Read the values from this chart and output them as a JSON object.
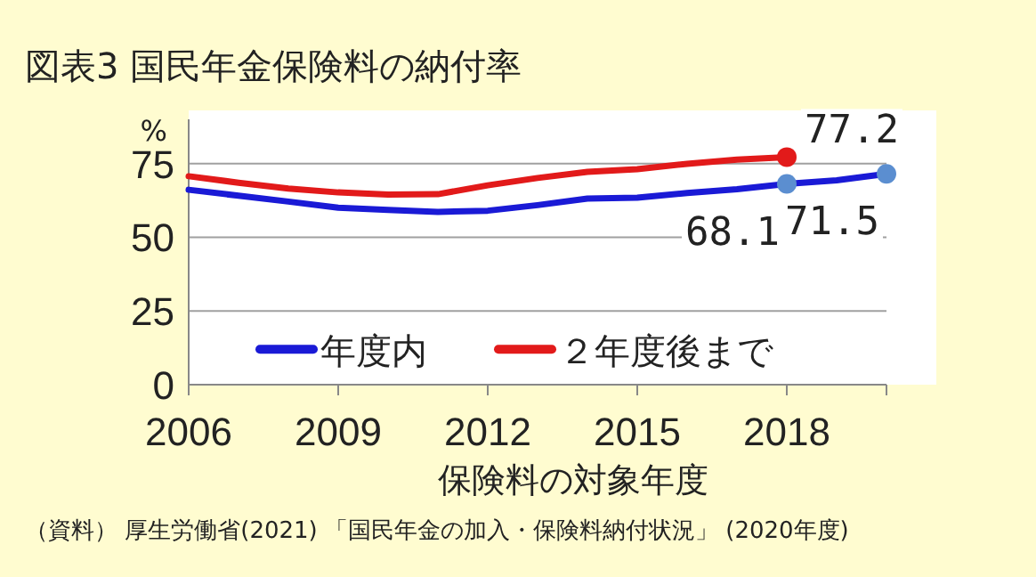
{
  "chart_data": {
    "type": "line",
    "title": "図表3  国民年金保険料の納付率",
    "xlabel": "保険料の対象年度",
    "ylabel": "%",
    "x": [
      2006,
      2007,
      2008,
      2009,
      2010,
      2011,
      2012,
      2013,
      2014,
      2015,
      2016,
      2017,
      2018,
      2019,
      2020
    ],
    "series": [
      {
        "name": "年度内",
        "color": "#1a1ad6",
        "values": [
          66.1,
          64.1,
          62.1,
          60.0,
          59.3,
          58.6,
          59.0,
          60.9,
          63.1,
          63.4,
          65.0,
          66.3,
          68.1,
          69.3,
          71.5
        ],
        "value_labels": [
          null,
          null,
          null,
          null,
          null,
          null,
          null,
          null,
          null,
          null,
          null,
          null,
          "68.1",
          null,
          "71.5"
        ]
      },
      {
        "name": "２年度後まで",
        "color": "#e21a1a",
        "values": [
          70.7,
          68.5,
          66.5,
          65.2,
          64.5,
          64.6,
          67.6,
          70.1,
          72.2,
          73.1,
          74.9,
          76.3,
          77.2,
          null,
          null
        ],
        "value_labels": [
          null,
          null,
          null,
          null,
          null,
          null,
          null,
          null,
          null,
          null,
          null,
          null,
          "77.2",
          null,
          null
        ]
      }
    ],
    "xlim": [
      2006,
      2020
    ],
    "xticks": [
      2006,
      2009,
      2012,
      2015,
      2018
    ],
    "ylim": [
      0,
      90
    ],
    "yticks": [
      0,
      25,
      50,
      75
    ],
    "grid": "y",
    "legend": "bottom",
    "marker": "none",
    "line_style": "solid",
    "annotations": [
      "（資料） 厚生労働省(2021) 「国民年金の加入・保険料納付状況」 (2020年度)"
    ]
  }
}
